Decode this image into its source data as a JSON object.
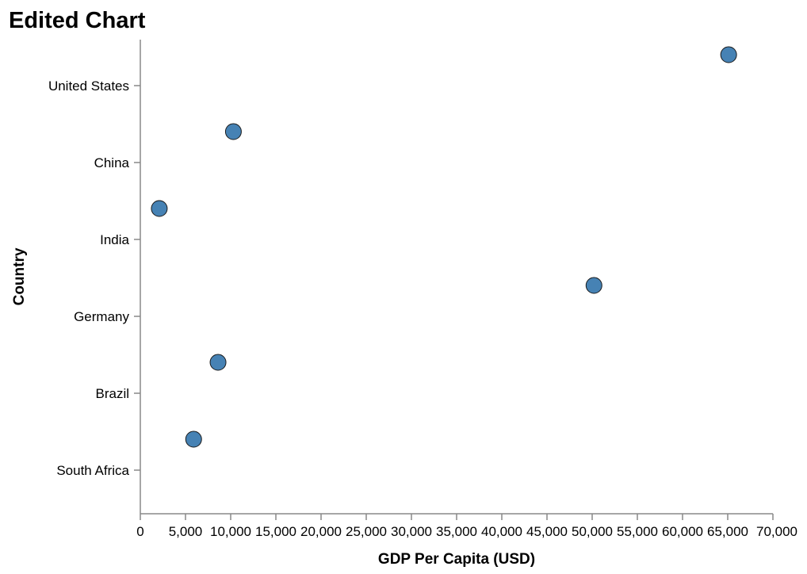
{
  "chart_data": {
    "type": "scatter",
    "title": "Edited Chart",
    "xlabel": "GDP Per Capita (USD)",
    "ylabel": "Country",
    "xlim": [
      0,
      70000
    ],
    "x_ticks": [
      0,
      5000,
      10000,
      15000,
      20000,
      25000,
      30000,
      35000,
      40000,
      45000,
      50000,
      55000,
      60000,
      65000,
      70000
    ],
    "x_tick_labels": [
      "0",
      "5,000",
      "10,000",
      "15,000",
      "20,000",
      "25,000",
      "30,000",
      "35,000",
      "40,000",
      "45,000",
      "50,000",
      "55,000",
      "60,000",
      "65,000",
      "70,000"
    ],
    "categories": [
      "United States",
      "China",
      "India",
      "Germany",
      "Brazil",
      "South Africa"
    ],
    "points": [
      {
        "country": "United States",
        "value": 65100
      },
      {
        "country": "China",
        "value": 10300
      },
      {
        "country": "India",
        "value": 2100
      },
      {
        "country": "Germany",
        "value": 50200
      },
      {
        "country": "Brazil",
        "value": 8600
      },
      {
        "country": "South Africa",
        "value": 5900
      }
    ],
    "point_color": "#4682b4",
    "grid": false,
    "legend": "none"
  }
}
